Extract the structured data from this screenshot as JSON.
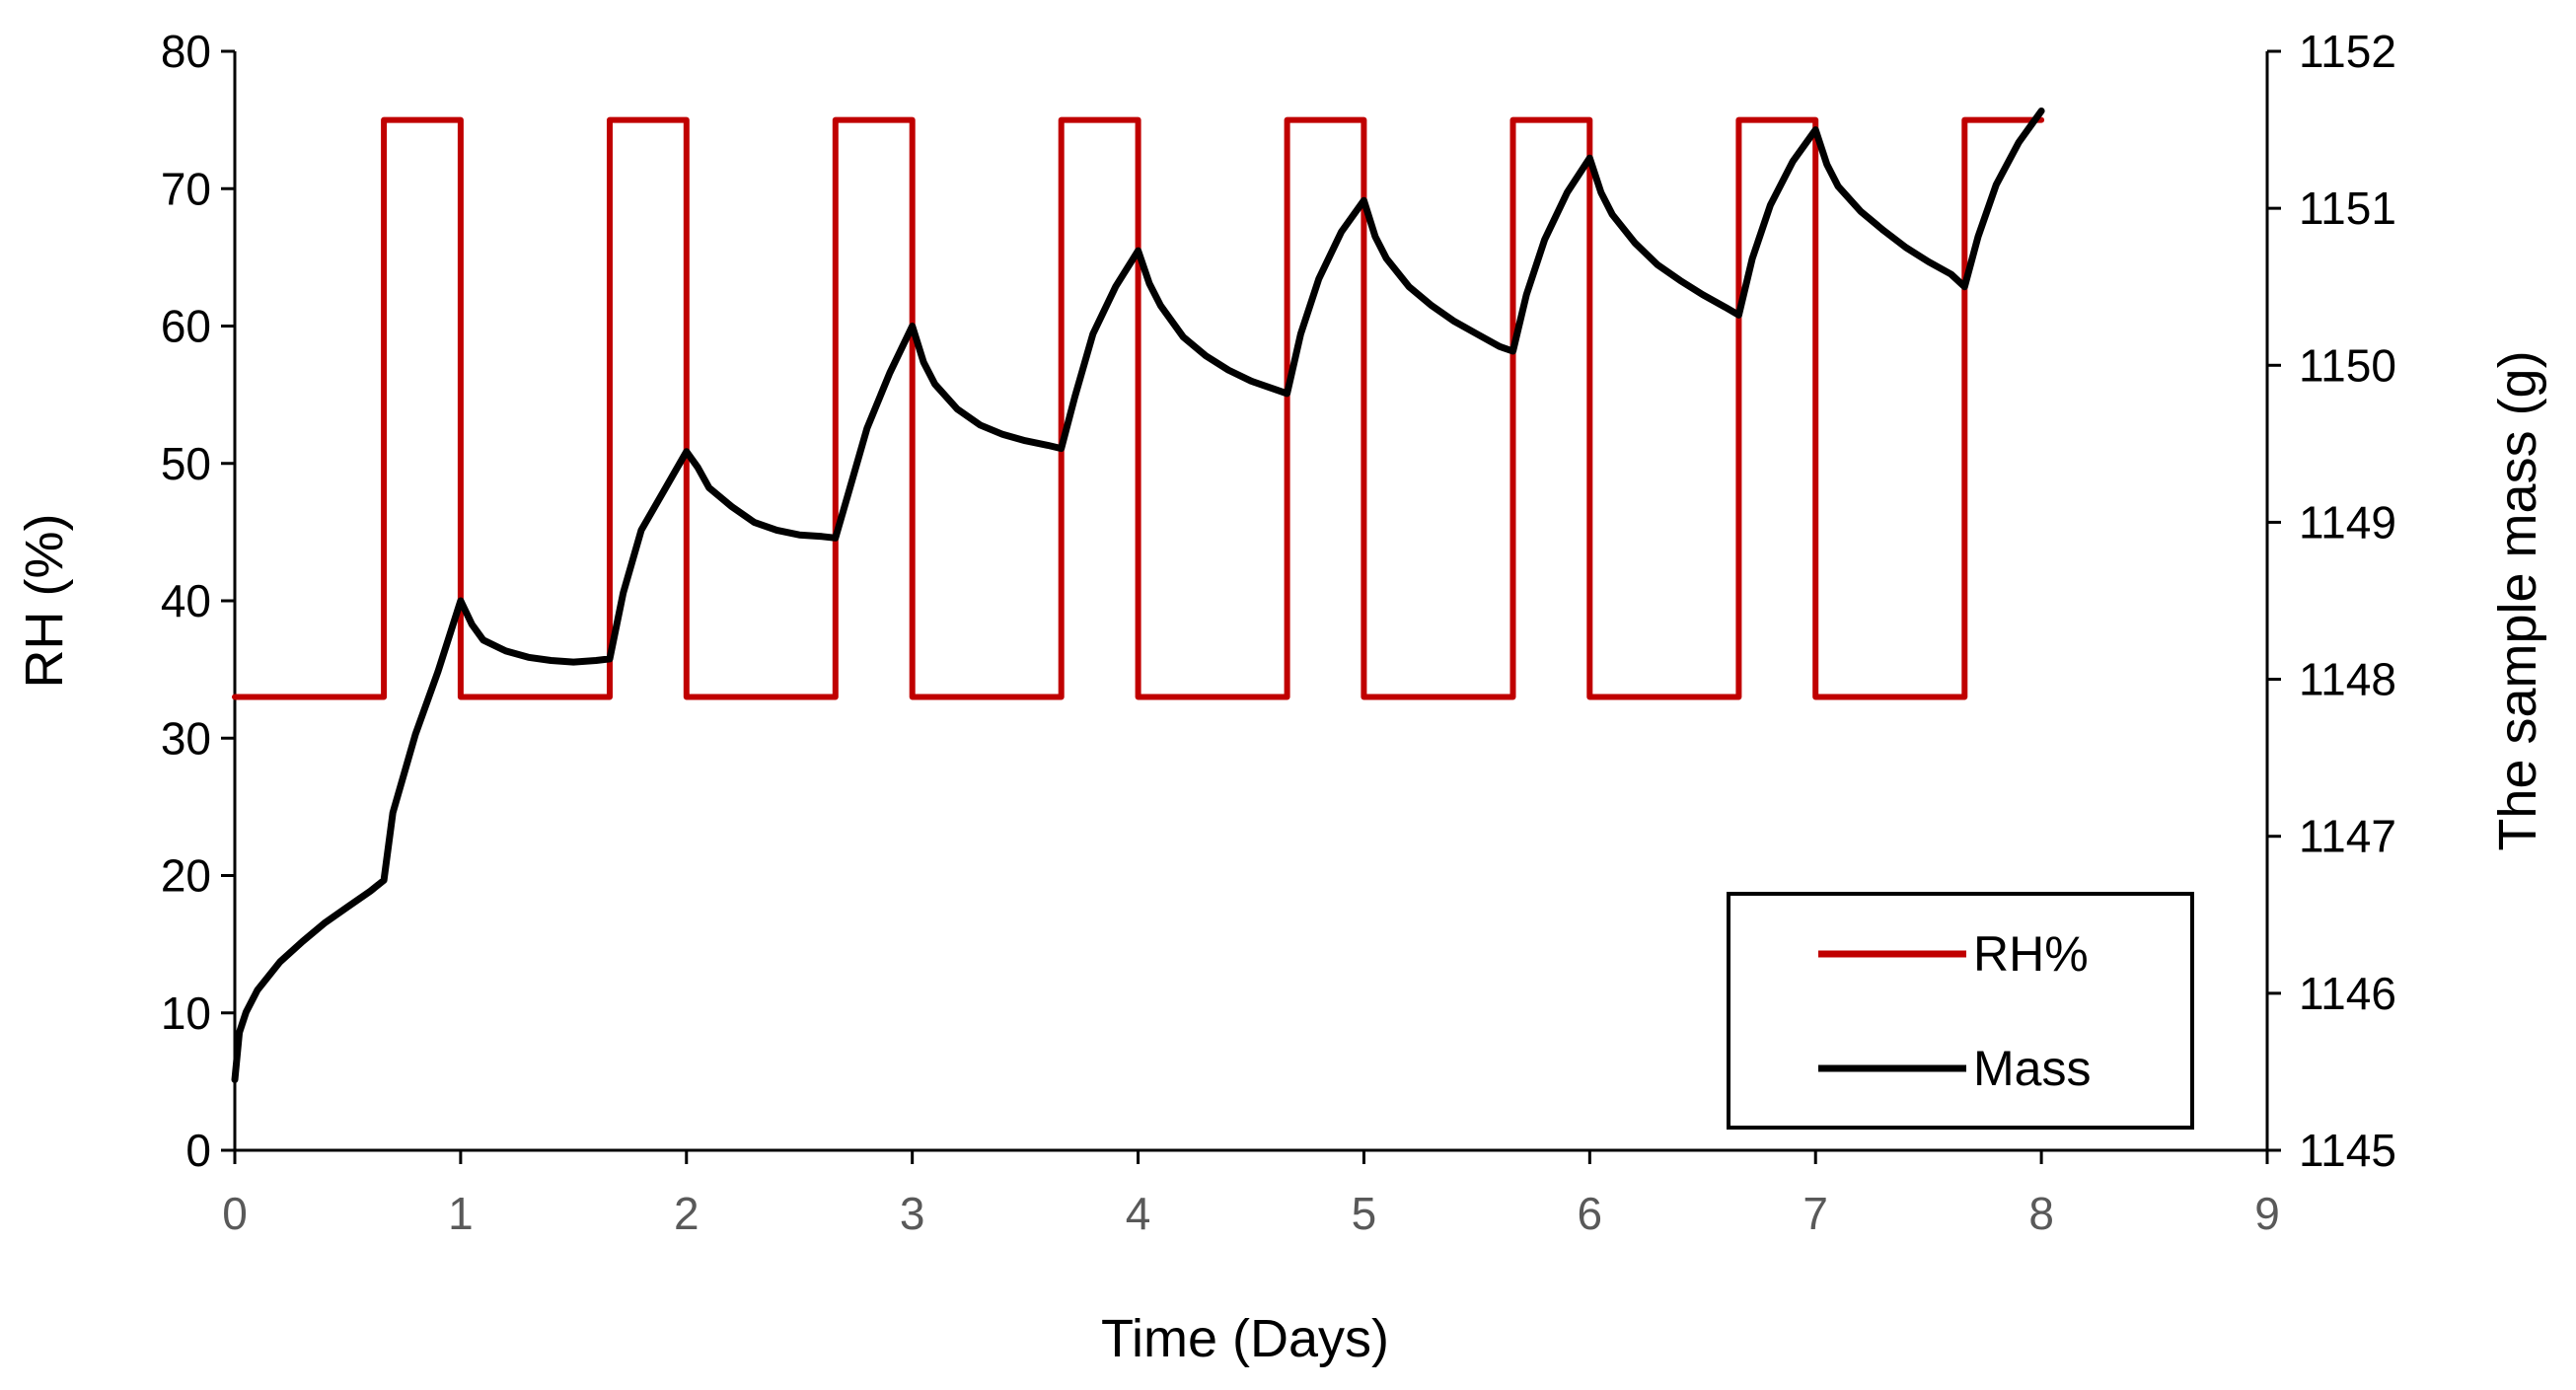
{
  "chart_data": {
    "type": "line",
    "title": "",
    "xlabel": "Time (Days)",
    "ylabel_left": "RH (%)",
    "ylabel_right": "The sample mass (g)",
    "xlim": [
      0,
      9
    ],
    "ylim_left": [
      0,
      80
    ],
    "ylim_right": [
      1145,
      1152
    ],
    "x_ticks": [
      0,
      1,
      2,
      3,
      4,
      5,
      6,
      7,
      8,
      9
    ],
    "y_left_ticks": [
      0,
      10,
      20,
      30,
      40,
      50,
      60,
      70,
      80
    ],
    "y_right_ticks": [
      1145,
      1146,
      1147,
      1148,
      1149,
      1150,
      1151,
      1152
    ],
    "grid": false,
    "legend_position": "bottom-right",
    "series": [
      {
        "name": "RH%",
        "axis": "left",
        "color": "#c00000",
        "x": [
          0,
          0.66,
          0.66,
          1.0,
          1.0,
          1.66,
          1.66,
          2.0,
          2.0,
          2.66,
          2.66,
          3.0,
          3.0,
          3.66,
          3.66,
          4.0,
          4.0,
          4.66,
          4.66,
          5.0,
          5.0,
          5.66,
          5.66,
          6.0,
          6.0,
          6.66,
          6.66,
          7.0,
          7.0,
          7.66,
          7.66,
          8.0
        ],
        "y": [
          33,
          33,
          75,
          75,
          33,
          33,
          75,
          75,
          33,
          33,
          75,
          75,
          33,
          33,
          75,
          75,
          33,
          33,
          75,
          75,
          33,
          33,
          75,
          75,
          33,
          33,
          75,
          75,
          33,
          33,
          75,
          75
        ]
      },
      {
        "name": "Mass",
        "axis": "right",
        "color": "#000000",
        "x": [
          0,
          0.02,
          0.05,
          0.1,
          0.2,
          0.3,
          0.4,
          0.5,
          0.6,
          0.66,
          0.7,
          0.8,
          0.9,
          1.0,
          1.05,
          1.1,
          1.2,
          1.3,
          1.4,
          1.5,
          1.6,
          1.66,
          1.72,
          1.8,
          1.9,
          2.0,
          2.05,
          2.1,
          2.2,
          2.3,
          2.4,
          2.5,
          2.6,
          2.66,
          2.72,
          2.8,
          2.9,
          3.0,
          3.05,
          3.1,
          3.2,
          3.3,
          3.4,
          3.5,
          3.6,
          3.66,
          3.72,
          3.8,
          3.9,
          4.0,
          4.05,
          4.1,
          4.2,
          4.3,
          4.4,
          4.5,
          4.6,
          4.66,
          4.72,
          4.8,
          4.9,
          5.0,
          5.05,
          5.1,
          5.2,
          5.3,
          5.4,
          5.5,
          5.6,
          5.66,
          5.72,
          5.8,
          5.9,
          6.0,
          6.05,
          6.1,
          6.2,
          6.3,
          6.4,
          6.5,
          6.6,
          6.66,
          6.72,
          6.8,
          6.9,
          7.0,
          7.05,
          7.1,
          7.2,
          7.3,
          7.4,
          7.5,
          7.6,
          7.66,
          7.72,
          7.8,
          7.9,
          8.0
        ],
        "y": [
          1145.45,
          1145.75,
          1145.88,
          1146.02,
          1146.2,
          1146.33,
          1146.45,
          1146.55,
          1146.65,
          1146.72,
          1147.15,
          1147.65,
          1148.05,
          1148.5,
          1148.35,
          1148.25,
          1148.18,
          1148.14,
          1148.12,
          1148.11,
          1148.12,
          1148.13,
          1148.55,
          1148.95,
          1149.2,
          1149.45,
          1149.35,
          1149.22,
          1149.1,
          1149.0,
          1148.95,
          1148.92,
          1148.91,
          1148.9,
          1149.2,
          1149.6,
          1149.95,
          1150.25,
          1150.02,
          1149.88,
          1149.72,
          1149.62,
          1149.56,
          1149.52,
          1149.49,
          1149.47,
          1149.8,
          1150.2,
          1150.5,
          1150.73,
          1150.52,
          1150.38,
          1150.18,
          1150.06,
          1149.97,
          1149.9,
          1149.85,
          1149.82,
          1150.2,
          1150.55,
          1150.85,
          1151.05,
          1150.82,
          1150.68,
          1150.5,
          1150.38,
          1150.28,
          1150.2,
          1150.12,
          1150.09,
          1150.45,
          1150.8,
          1151.1,
          1151.32,
          1151.1,
          1150.96,
          1150.78,
          1150.64,
          1150.54,
          1150.45,
          1150.37,
          1150.32,
          1150.68,
          1151.02,
          1151.3,
          1151.5,
          1151.28,
          1151.14,
          1150.98,
          1150.86,
          1150.75,
          1150.66,
          1150.58,
          1150.5,
          1150.82,
          1151.15,
          1151.42,
          1151.62
        ]
      }
    ]
  }
}
